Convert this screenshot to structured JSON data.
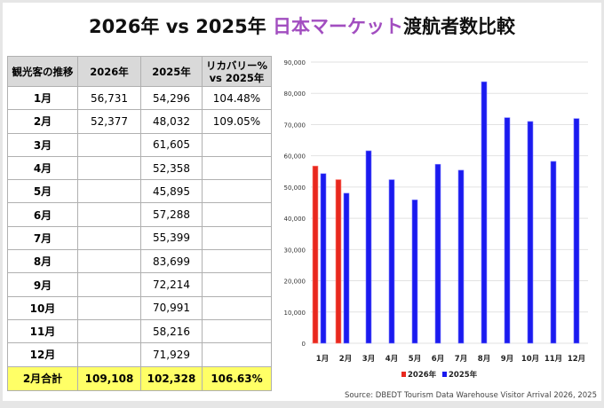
{
  "title": {
    "part1": "2026年 vs 2025年 ",
    "highlight": "日本マーケット",
    "part2": "渡航者数比較"
  },
  "table": {
    "headers": [
      "観光客の推移",
      "2026年",
      "2025年",
      "リカバリー% vs 2025年"
    ],
    "rows": [
      [
        "1月",
        "56,731",
        "54,296",
        "104.48%"
      ],
      [
        "2月",
        "52,377",
        "48,032",
        "109.05%"
      ],
      [
        "3月",
        "",
        "61,605",
        ""
      ],
      [
        "4月",
        "",
        "52,358",
        ""
      ],
      [
        "5月",
        "",
        "45,895",
        ""
      ],
      [
        "6月",
        "",
        "57,288",
        ""
      ],
      [
        "7月",
        "",
        "55,399",
        ""
      ],
      [
        "8月",
        "",
        "83,699",
        ""
      ],
      [
        "9月",
        "",
        "72,214",
        ""
      ],
      [
        "10月",
        "",
        "70,991",
        ""
      ],
      [
        "11月",
        "",
        "58,216",
        ""
      ],
      [
        "12月",
        "",
        "71,929",
        ""
      ]
    ],
    "total": [
      "2月合計",
      "109,108",
      "102,328",
      "106.63%"
    ]
  },
  "chart_data": {
    "type": "bar",
    "categories": [
      "1月",
      "2月",
      "3月",
      "4月",
      "5月",
      "6月",
      "7月",
      "8月",
      "9月",
      "10月",
      "11月",
      "12月"
    ],
    "series": [
      {
        "name": "2026年",
        "color": "#e8281e",
        "values": [
          56731,
          52377,
          null,
          null,
          null,
          null,
          null,
          null,
          null,
          null,
          null,
          null
        ]
      },
      {
        "name": "2025年",
        "color": "#1a1aef",
        "values": [
          54296,
          48032,
          61605,
          52358,
          45895,
          57288,
          55399,
          83699,
          72214,
          70991,
          58216,
          71929
        ]
      }
    ],
    "ylim": [
      0,
      90000
    ],
    "yticks": [
      "0",
      "10,000",
      "20,000",
      "30,000",
      "40,000",
      "50,000",
      "60,000",
      "70,000",
      "80,000",
      "90,000"
    ],
    "legend": "bottom"
  },
  "source": "Source: DBEDT Tourism Data Warehouse Visitor Arrival 2026, 2025"
}
